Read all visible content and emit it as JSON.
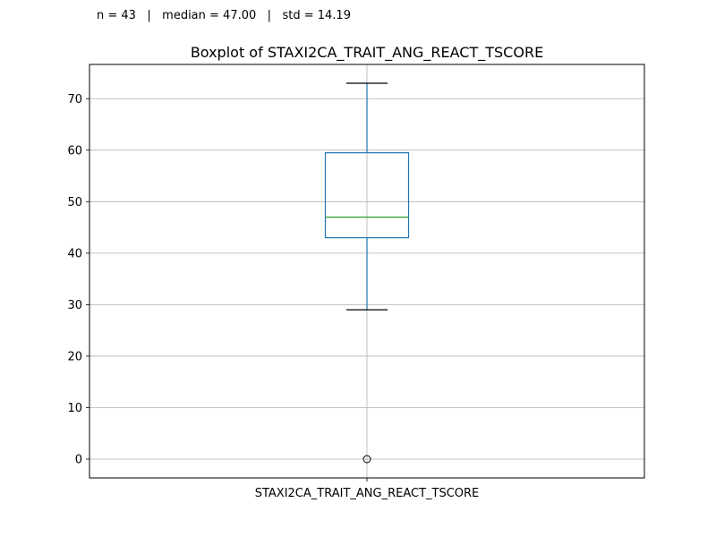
{
  "stats": {
    "n": "n = 43",
    "median": "median = 47.00",
    "std": "std = 14.19",
    "separator": "|"
  },
  "chart_data": {
    "type": "box",
    "title": "Boxplot of STAXI2CA_TRAIT_ANG_REACT_TSCORE",
    "xlabel": "",
    "ylabel": "",
    "categories": [
      "STAXI2CA_TRAIT_ANG_REACT_TSCORE"
    ],
    "ylim": [
      -3.65,
      76.65
    ],
    "yticks": [
      0,
      10,
      20,
      30,
      40,
      50,
      60,
      70
    ],
    "grid": true,
    "box": {
      "whisker_low": 29,
      "q1": 43,
      "median": 47,
      "q3": 59.5,
      "whisker_high": 73,
      "outliers": [
        0
      ]
    },
    "colors": {
      "box": "#1f77b4",
      "median": "#2ca02c",
      "caps": "#000000",
      "grid": "#b0b0b0"
    }
  }
}
